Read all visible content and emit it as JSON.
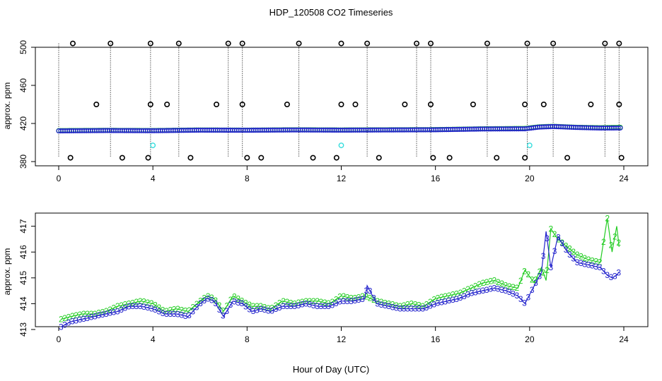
{
  "figure_title": "HDP_120508  CO2 Timeseries",
  "xlabel": "Hour of Day (UTC)",
  "colors": {
    "series_2": "#22cc22",
    "series_3": "#2222cc",
    "outlier": "#000000",
    "flag": "#33dddd",
    "frame": "#000000"
  },
  "chart_data": [
    {
      "type": "scatter",
      "title": "",
      "xlabel": "",
      "ylabel": "approx. ppm",
      "xlim": [
        0,
        24
      ],
      "ylim": [
        380,
        500
      ],
      "x_ticks": [
        "0",
        "4",
        "8",
        "12",
        "16",
        "20",
        "24"
      ],
      "y_ticks": [
        "380",
        "420",
        "460",
        "500"
      ],
      "grid": false,
      "baseline_series": [
        {
          "name": "",
          "color": "#22cc22",
          "points": [
            [
              0.0,
              412.5
            ],
            [
              2,
              412.8
            ],
            [
              4,
              412.6
            ],
            [
              6,
              413.2
            ],
            [
              8,
              413
            ],
            [
              10,
              413.4
            ],
            [
              12,
              413.2
            ],
            [
              14,
              413.4
            ],
            [
              16,
              413.6
            ],
            [
              18,
              414.4
            ],
            [
              19.8,
              414.8
            ],
            [
              20.4,
              416.5
            ],
            [
              21,
              417
            ],
            [
              22,
              416
            ],
            [
              23,
              415.6
            ],
            [
              23.9,
              416
            ]
          ]
        },
        {
          "name": "",
          "color": "#2222cc",
          "points": [
            [
              0.0,
              412.2
            ],
            [
              2,
              412.6
            ],
            [
              4,
              412.4
            ],
            [
              6,
              413
            ],
            [
              8,
              412.9
            ],
            [
              10,
              413.2
            ],
            [
              12,
              413
            ],
            [
              14,
              413.2
            ],
            [
              16,
              413.4
            ],
            [
              18,
              414.2
            ],
            [
              19.8,
              414.4
            ],
            [
              20.4,
              416.2
            ],
            [
              21,
              416.8
            ],
            [
              22,
              415.8
            ],
            [
              23,
              415.2
            ],
            [
              23.9,
              415.3
            ]
          ]
        }
      ],
      "outliers_high": [
        0.6,
        2.2,
        3.9,
        5.1,
        7.2,
        7.8,
        10.2,
        12.0,
        13.1,
        15.2,
        15.8,
        18.2,
        19.9,
        21.0,
        23.2,
        23.8
      ],
      "outliers_mid": [
        1.6,
        3.9,
        4.6,
        6.7,
        7.8,
        9.7,
        12.0,
        12.6,
        14.7,
        15.8,
        17.6,
        19.8,
        20.6,
        22.6,
        23.8
      ],
      "outliers_low": [
        0.5,
        2.7,
        3.8,
        5.6,
        8.0,
        8.6,
        10.8,
        11.8,
        13.6,
        15.9,
        16.6,
        18.6,
        19.8,
        21.6,
        23.9
      ],
      "outlier_values": {
        "high": 504,
        "mid": 440,
        "low": 384
      },
      "flags": [
        [
          4.0,
          397
        ],
        [
          12.0,
          397
        ],
        [
          20.0,
          397
        ]
      ],
      "spikes": [
        0.0,
        2.2,
        3.9,
        5.1,
        7.2,
        7.8,
        10.2,
        13.1,
        15.2,
        15.8,
        18.2,
        19.9,
        21.0,
        23.2,
        23.8
      ]
    },
    {
      "type": "line",
      "title": "",
      "xlabel": "Hour of Day (UTC)",
      "ylabel": "approx. ppm",
      "xlim": [
        0,
        24
      ],
      "ylim": [
        413,
        417.4
      ],
      "x_ticks": [
        "0",
        "4",
        "8",
        "12",
        "16",
        "20",
        "24"
      ],
      "y_ticks": [
        "413",
        "414",
        "415",
        "416",
        "417"
      ],
      "grid": false,
      "series": [
        {
          "name": "",
          "symbol": "2",
          "color": "#22cc22",
          "x": [
            0.1,
            0.5,
            1.0,
            1.5,
            2.0,
            2.5,
            3.0,
            3.5,
            4.0,
            4.5,
            5.0,
            5.5,
            6.0,
            6.3,
            6.6,
            7.0,
            7.4,
            7.8,
            8.2,
            8.6,
            9.0,
            9.5,
            10.0,
            10.5,
            11.0,
            11.5,
            12.0,
            12.5,
            13.0,
            13.5,
            14.0,
            14.5,
            15.0,
            15.5,
            16.0,
            16.5,
            17.0,
            17.5,
            18.0,
            18.5,
            19.0,
            19.5,
            19.8,
            20.2,
            20.5,
            20.7,
            20.9,
            21.2,
            21.6,
            22.0,
            22.5,
            23.0,
            23.3,
            23.5,
            23.7,
            23.85
          ],
          "y": [
            413.4,
            413.5,
            413.6,
            413.6,
            413.7,
            413.9,
            414.0,
            414.1,
            414.0,
            413.7,
            413.8,
            413.7,
            414.1,
            414.3,
            414.2,
            413.7,
            414.3,
            414.1,
            413.9,
            413.9,
            413.8,
            414.1,
            414.0,
            414.1,
            414.1,
            414.0,
            414.3,
            414.2,
            414.3,
            414.1,
            414.0,
            413.9,
            414.0,
            413.9,
            414.2,
            414.3,
            414.4,
            414.6,
            414.8,
            414.9,
            414.7,
            414.6,
            415.3,
            414.8,
            415.4,
            414.9,
            416.9,
            416.5,
            416.2,
            415.9,
            415.7,
            415.6,
            417.3,
            416.0,
            417.0,
            415.8
          ]
        },
        {
          "name": "",
          "symbol": "3",
          "color": "#2222cc",
          "x": [
            0.1,
            0.5,
            1.0,
            1.5,
            2.0,
            2.5,
            3.0,
            3.5,
            4.0,
            4.5,
            5.0,
            5.5,
            6.0,
            6.3,
            6.6,
            7.0,
            7.4,
            7.8,
            8.2,
            8.6,
            9.0,
            9.5,
            10.0,
            10.5,
            11.0,
            11.5,
            12.0,
            12.5,
            13.0,
            13.1,
            13.5,
            14.0,
            14.5,
            15.0,
            15.5,
            16.0,
            16.5,
            17.0,
            17.5,
            18.0,
            18.5,
            19.0,
            19.5,
            19.8,
            20.2,
            20.5,
            20.7,
            20.9,
            21.2,
            21.6,
            22.0,
            22.5,
            23.0,
            23.3,
            23.5,
            23.7,
            23.85
          ],
          "y": [
            413.1,
            413.3,
            413.4,
            413.5,
            413.6,
            413.7,
            413.9,
            413.9,
            413.8,
            413.6,
            413.6,
            413.5,
            414.0,
            414.2,
            414.1,
            413.5,
            414.1,
            414.0,
            413.7,
            413.8,
            413.7,
            413.9,
            413.9,
            414.0,
            413.9,
            413.9,
            414.1,
            414.1,
            414.2,
            414.7,
            414.0,
            413.9,
            413.8,
            413.8,
            413.8,
            414.0,
            414.1,
            414.2,
            414.4,
            414.5,
            414.6,
            414.5,
            414.3,
            414.0,
            414.7,
            415.2,
            416.8,
            415.4,
            416.6,
            416.0,
            415.6,
            415.5,
            415.4,
            415.1,
            415.0,
            415.1,
            415.3
          ]
        }
      ]
    }
  ]
}
